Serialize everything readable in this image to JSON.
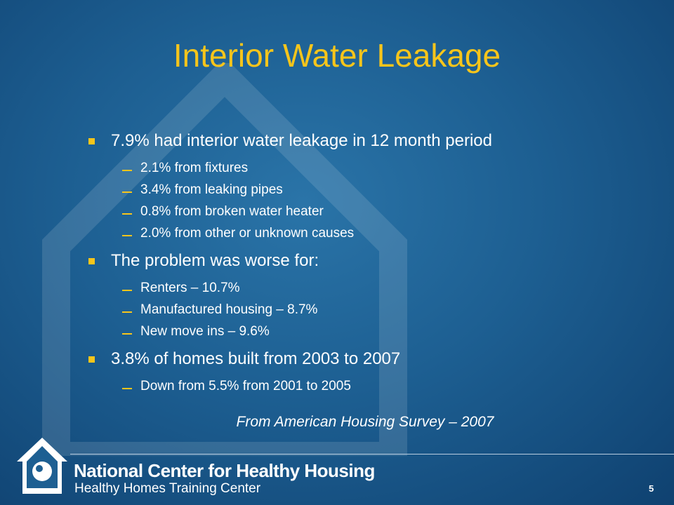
{
  "slide": {
    "title": "Interior Water Leakage",
    "bullets": [
      {
        "text": "7.9% had interior water leakage in 12 month period",
        "sub": [
          "2.1% from fixtures",
          "3.4% from leaking pipes",
          "0.8% from broken water heater",
          "2.0% from other or unknown causes"
        ]
      },
      {
        "text": "The problem was worse for:",
        "sub": [
          "Renters – 10.7%",
          "Manufactured housing – 8.7%",
          "New move ins – 9.6%"
        ]
      },
      {
        "text": "3.8% of homes built from 2003 to 2007",
        "sub": [
          "Down from 5.5% from 2001 to 2005"
        ]
      }
    ],
    "source": "From American Housing Survey – 2007",
    "footer": {
      "organization": "National Center for Healthy Housing",
      "subtitle": "Healthy Homes Training Center",
      "page_number": "5"
    }
  }
}
